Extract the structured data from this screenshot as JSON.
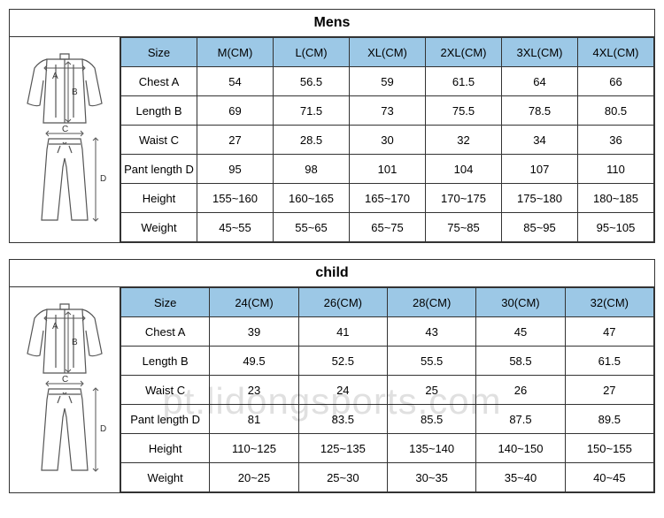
{
  "watermark": "pt.lidongsports.com",
  "mens": {
    "title": "Mens",
    "size_header": "Size",
    "columns": [
      "M(CM)",
      "L(CM)",
      "XL(CM)",
      "2XL(CM)",
      "3XL(CM)",
      "4XL(CM)"
    ],
    "rows": [
      {
        "label": "Chest A",
        "values": [
          "54",
          "56.5",
          "59",
          "61.5",
          "64",
          "66"
        ]
      },
      {
        "label": "Length B",
        "values": [
          "69",
          "71.5",
          "73",
          "75.5",
          "78.5",
          "80.5"
        ]
      },
      {
        "label": "Waist C",
        "values": [
          "27",
          "28.5",
          "30",
          "32",
          "34",
          "36"
        ]
      },
      {
        "label": "Pant length D",
        "values": [
          "95",
          "98",
          "101",
          "104",
          "107",
          "110"
        ]
      },
      {
        "label": "Height",
        "values": [
          "155~160",
          "160~165",
          "165~170",
          "170~175",
          "175~180",
          "180~185"
        ]
      },
      {
        "label": "Weight",
        "values": [
          "45~55",
          "55~65",
          "65~75",
          "75~85",
          "85~95",
          "95~105"
        ]
      }
    ],
    "header_bg": "#9cc8e6",
    "border_color": "#333333"
  },
  "child": {
    "title": "child",
    "size_header": "Size",
    "columns": [
      "24(CM)",
      "26(CM)",
      "28(CM)",
      "30(CM)",
      "32(CM)"
    ],
    "rows": [
      {
        "label": "Chest A",
        "values": [
          "39",
          "41",
          "43",
          "45",
          "47"
        ]
      },
      {
        "label": "Length B",
        "values": [
          "49.5",
          "52.5",
          "55.5",
          "58.5",
          "61.5"
        ]
      },
      {
        "label": "Waist C",
        "values": [
          "23",
          "24",
          "25",
          "26",
          "27"
        ]
      },
      {
        "label": "Pant length D",
        "values": [
          "81",
          "83.5",
          "85.5",
          "87.5",
          "89.5"
        ]
      },
      {
        "label": "Height",
        "values": [
          "110~125",
          "125~135",
          "135~140",
          "140~150",
          "150~155"
        ]
      },
      {
        "label": "Weight",
        "values": [
          "20~25",
          "25~30",
          "30~35",
          "35~40",
          "40~45"
        ]
      }
    ],
    "header_bg": "#9cc8e6",
    "border_color": "#333333"
  },
  "diagram_labels": {
    "A": "A",
    "B": "B",
    "C": "C",
    "D": "D"
  }
}
